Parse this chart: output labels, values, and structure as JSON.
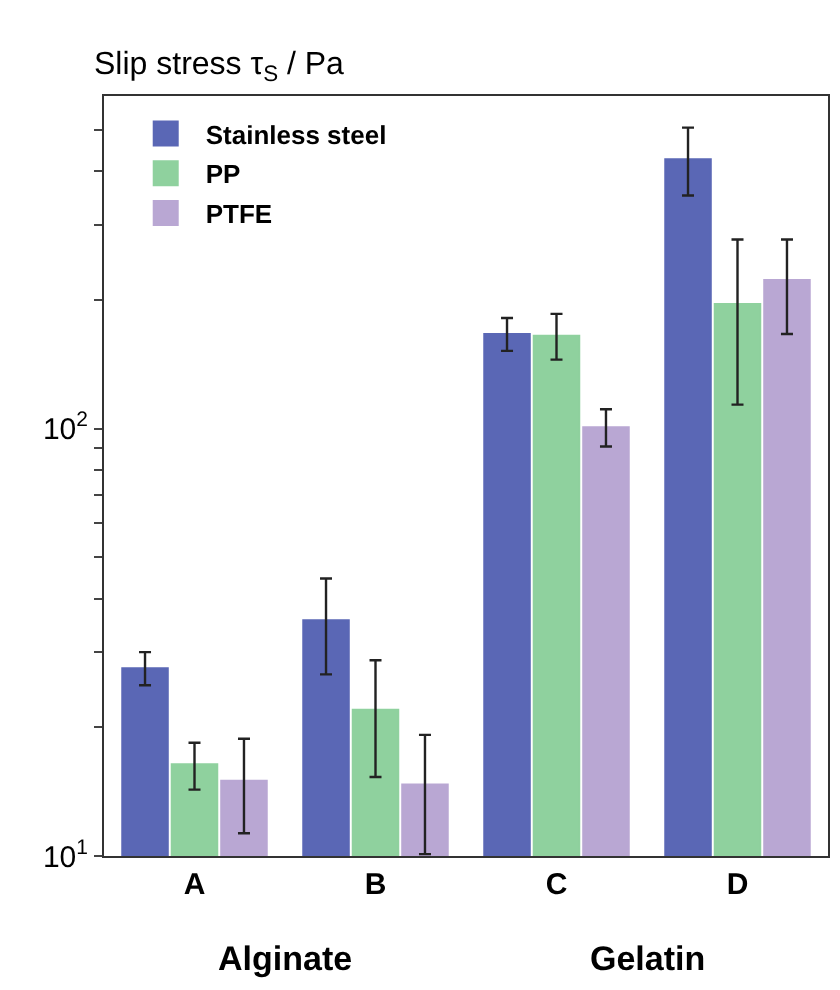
{
  "chart_data": {
    "type": "bar",
    "ylabel": "τ$_{S}$ / Pa",
    "title": "Slip stress",
    "categories": [
      "A",
      "B",
      "C",
      "D"
    ],
    "series": [
      {
        "name": "Stainless steel",
        "color": "#5a67b5",
        "values": [
          27.5,
          35.6,
          166.5,
          427
        ],
        "errors": [
          [
            25.1,
            30
          ],
          [
            26.6,
            44.6
          ],
          [
            152,
            181.5
          ],
          [
            351,
            506
          ]
        ]
      },
      {
        "name": "PP",
        "color": "#8fd19e",
        "values": [
          16.4,
          22.0,
          164.8,
          195.7
        ],
        "errors": [
          [
            14.3,
            18.4
          ],
          [
            15.3,
            28.7
          ],
          [
            145,
            185.5
          ],
          [
            113.8,
            277
          ]
        ]
      },
      {
        "name": "PTFE",
        "color": "#b9a7d3",
        "values": [
          15.0,
          14.7,
          100.7,
          222.6
        ],
        "errors": [
          [
            11.3,
            18.8
          ],
          [
            10.1,
            19.2
          ],
          [
            90.8,
            111
          ],
          [
            166.5,
            277
          ]
        ]
      }
    ],
    "log": true,
    "ylim": [
      10,
      600
    ],
    "yticks": [
      {
        "value": 10,
        "label": "10$^{1}$"
      },
      {
        "value": 20,
        "label": null
      },
      {
        "value": 30,
        "label": null
      },
      {
        "value": 40,
        "label": null
      },
      {
        "value": 50,
        "label": null
      },
      {
        "value": 60,
        "label": null
      },
      {
        "value": 70,
        "label": null
      },
      {
        "value": 80,
        "label": null
      },
      {
        "value": 90,
        "label": null
      },
      {
        "value": 100,
        "label": "10$^{2}$"
      },
      {
        "value": 200,
        "label": null
      },
      {
        "value": 300,
        "label": null
      },
      {
        "value": 400,
        "label": null
      },
      {
        "value": 500,
        "label": null
      }
    ],
    "annotations": [
      "Alginate",
      "Gelatin"
    ],
    "legend": "top left"
  }
}
